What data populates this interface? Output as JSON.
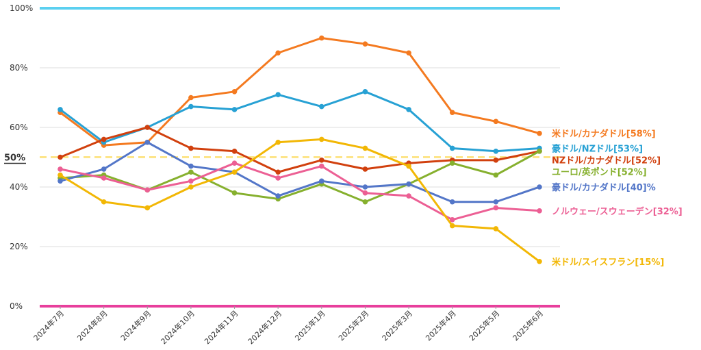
{
  "chart_data": {
    "type": "line",
    "categories": [
      "2024年7月",
      "2024年8月",
      "2024年9月",
      "2024年10月",
      "2024年11月",
      "2024年12月",
      "2025年1月",
      "2025年2月",
      "2025年3月",
      "2025年4月",
      "2025年5月",
      "2025年6月"
    ],
    "ylim": [
      0,
      100
    ],
    "yticks": [
      0,
      20,
      40,
      60,
      80,
      100
    ],
    "ytick_labels": [
      "0%",
      "20%",
      "40%",
      "60%",
      "80%",
      "100%"
    ],
    "grid": true,
    "reference_lines": [
      {
        "value": 100,
        "color": "#5bd0f0",
        "style": "solid"
      },
      {
        "value": 50,
        "label": "50%",
        "color": "#fde58a",
        "style": "dashed"
      },
      {
        "value": 0,
        "color": "#e83e9c",
        "style": "solid"
      }
    ],
    "series": [
      {
        "name": "米ドル/カナダドル[58%]",
        "color": "#f47a20",
        "values": [
          65,
          54,
          55,
          70,
          72,
          85,
          90,
          88,
          85,
          65,
          62,
          58
        ]
      },
      {
        "name": "豪ドル/NZドル[53%]",
        "color": "#27a1d4",
        "values": [
          66,
          55,
          60,
          67,
          66,
          71,
          67,
          72,
          66,
          53,
          52,
          53
        ]
      },
      {
        "name": "NZドル/カナダドル[52%]",
        "color": "#d1400e",
        "values": [
          50,
          56,
          60,
          53,
          52,
          45,
          49,
          46,
          48,
          49,
          49,
          52
        ]
      },
      {
        "name": "ユーロ/英ポンド[52%]",
        "color": "#86b02e",
        "values": [
          43,
          44,
          39,
          45,
          38,
          36,
          41,
          35,
          41,
          48,
          44,
          52
        ]
      },
      {
        "name": "豪ドル/カナダドル[40]%",
        "color": "#5376c8",
        "values": [
          42,
          46,
          55,
          47,
          45,
          37,
          42,
          40,
          41,
          35,
          35,
          40
        ]
      },
      {
        "name": "ノルウェー/スウェーデン[32%]",
        "color": "#ec5f94",
        "values": [
          46,
          43,
          39,
          42,
          48,
          43,
          47,
          38,
          37,
          29,
          33,
          32
        ]
      },
      {
        "name": "米ドル/スイスフラン[15%]",
        "color": "#f2b705",
        "values": [
          44,
          35,
          33,
          40,
          45,
          55,
          56,
          53,
          47,
          27,
          26,
          15
        ]
      }
    ]
  }
}
